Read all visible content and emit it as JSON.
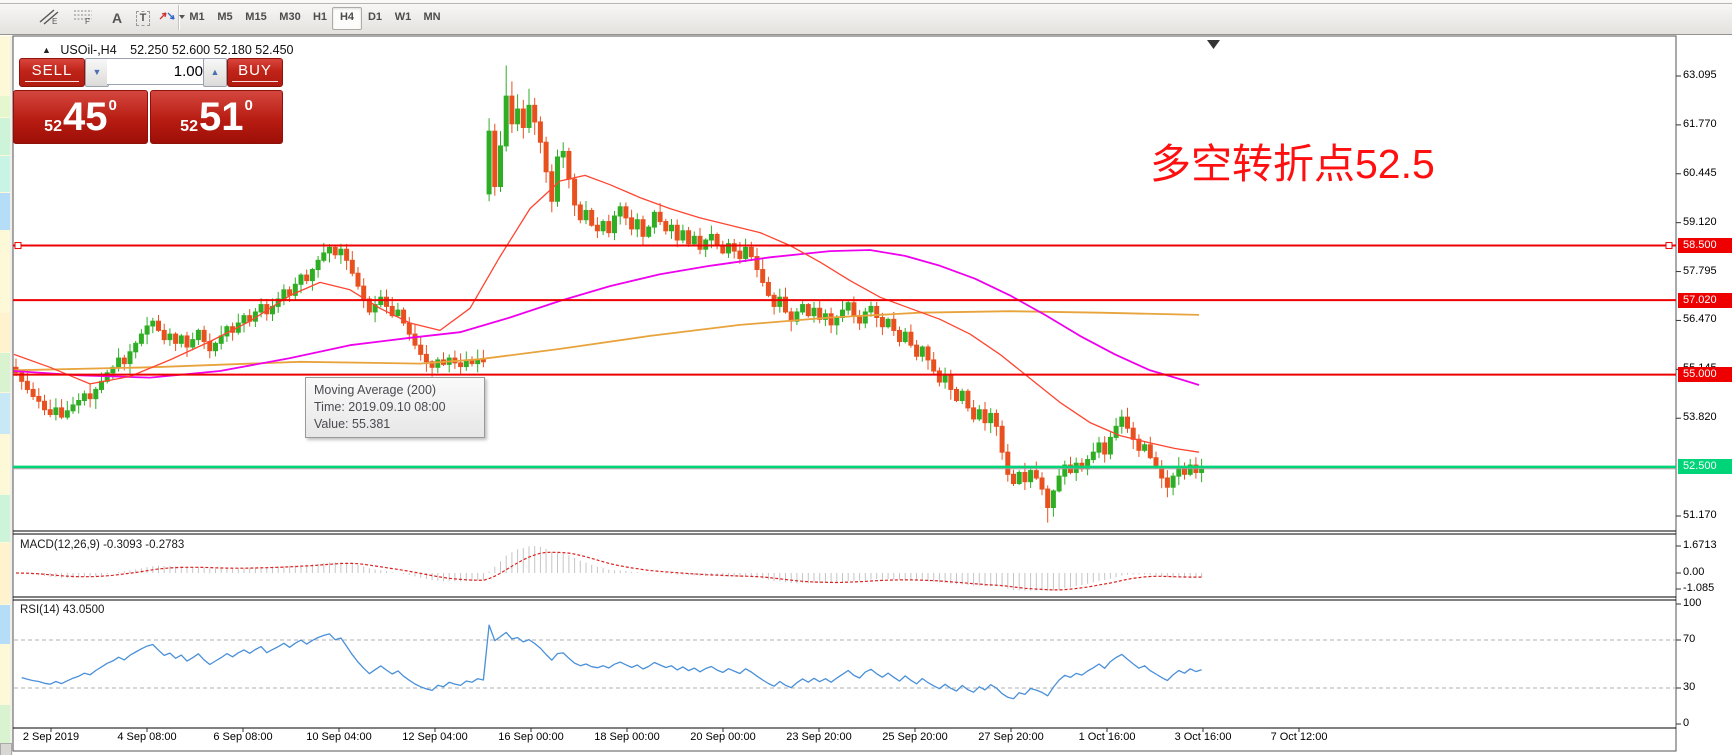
{
  "toolbar": {
    "drawing_tools": [
      {
        "name": "equidistant-channel-icon"
      },
      {
        "name": "fibonacci-retracement-icon"
      },
      {
        "name": "text-icon",
        "glyph": "A"
      },
      {
        "name": "text-label-icon",
        "glyph": "T"
      },
      {
        "name": "arrow-tools-icon"
      }
    ],
    "timeframes": [
      {
        "label": "M1",
        "active": false
      },
      {
        "label": "M5",
        "active": false
      },
      {
        "label": "M15",
        "active": false
      },
      {
        "label": "M30",
        "active": false
      },
      {
        "label": "H1",
        "active": false
      },
      {
        "label": "H4",
        "active": true
      },
      {
        "label": "D1",
        "active": false
      },
      {
        "label": "W1",
        "active": false
      },
      {
        "label": "MN",
        "active": false
      }
    ]
  },
  "chart_header": {
    "symbol": "USOil-,H4",
    "ohlc": "52.250 52.600 52.180 52.450"
  },
  "trade_panel": {
    "sell_label": "SELL",
    "buy_label": "BUY",
    "volume": "1.00",
    "bid": {
      "prefix": "52",
      "big": "45",
      "sup": "0",
      "full": "52.45"
    },
    "ask": {
      "prefix": "52",
      "big": "51",
      "sup": "0",
      "full": "52.51"
    }
  },
  "annotation": {
    "text": "多空转折点52.5",
    "color": "#ff0f0f"
  },
  "tooltip": {
    "title": "Moving Average (200)",
    "time": "Time: 2019.09.10 08:00",
    "value": "Value: 55.381"
  },
  "chart_data": {
    "type": "candlestick+indicators",
    "symbol": "USOil-,H4",
    "ylim": [
      50.77,
      64.12
    ],
    "y_axis_ticks": [
      "63.095",
      "61.770",
      "60.445",
      "59.120",
      "57.795",
      "56.470",
      "55.145",
      "53.820",
      "51.170"
    ],
    "price_lines": [
      {
        "price": 58.5,
        "label": "58.500",
        "color": "#ee0000",
        "handles": true
      },
      {
        "price": 57.02,
        "label": "57.020",
        "color": "#ee0000",
        "handles": false
      },
      {
        "price": 55.0,
        "label": "55.000",
        "color": "#ee0000",
        "handles": false
      },
      {
        "price": 52.5,
        "label": "52.500",
        "color": "#00d478",
        "handles": false
      }
    ],
    "current_price_line": 52.45,
    "x_axis_labels": [
      "2 Sep 2019",
      "4 Sep 08:00",
      "6 Sep 08:00",
      "10 Sep 04:00",
      "12 Sep 04:00",
      "16 Sep 00:00",
      "18 Sep 00:00",
      "20 Sep 00:00",
      "23 Sep 20:00",
      "25 Sep 20:00",
      "27 Sep 20:00",
      "1 Oct 16:00",
      "3 Oct 16:00",
      "7 Oct 12:00"
    ],
    "open_start": 55.2,
    "closes": [
      55.05,
      54.82,
      54.6,
      54.41,
      54.28,
      54.05,
      53.92,
      54.1,
      53.85,
      54.02,
      54.18,
      54.3,
      54.48,
      54.35,
      54.6,
      54.82,
      55.05,
      55.2,
      55.45,
      55.3,
      55.62,
      55.85,
      56.1,
      56.32,
      56.45,
      56.2,
      55.95,
      56.1,
      55.85,
      56.05,
      55.75,
      55.95,
      56.2,
      55.9,
      55.65,
      55.85,
      56.05,
      56.3,
      56.15,
      56.4,
      56.6,
      56.45,
      56.7,
      56.9,
      56.65,
      56.85,
      57.05,
      57.3,
      57.15,
      57.45,
      57.7,
      57.55,
      57.85,
      58.1,
      58.3,
      58.45,
      58.25,
      58.4,
      58.1,
      57.75,
      57.4,
      57.05,
      56.7,
      56.9,
      57.1,
      56.85,
      56.6,
      56.75,
      56.4,
      56.1,
      55.8,
      55.55,
      55.35,
      55.2,
      55.4,
      55.28,
      55.45,
      55.32,
      55.22,
      55.38,
      55.3,
      55.42,
      55.35,
      61.6,
      60.1,
      61.2,
      62.55,
      61.8,
      62.2,
      61.7,
      62.3,
      61.85,
      61.3,
      60.5,
      59.7,
      60.9,
      61.05,
      60.3,
      59.6,
      59.2,
      59.45,
      59.05,
      58.9,
      59.15,
      58.85,
      59.3,
      59.55,
      59.25,
      58.95,
      59.2,
      58.75,
      59.0,
      59.4,
      59.15,
      58.9,
      59.05,
      58.65,
      58.9,
      58.55,
      58.75,
      58.4,
      58.65,
      58.8,
      58.5,
      58.3,
      58.55,
      58.35,
      58.15,
      58.45,
      58.2,
      57.85,
      57.5,
      57.15,
      56.85,
      57.1,
      56.7,
      56.45,
      56.7,
      56.9,
      56.6,
      56.8,
      56.5,
      56.65,
      56.35,
      56.55,
      56.75,
      56.95,
      56.6,
      56.4,
      56.7,
      56.85,
      56.55,
      56.3,
      56.5,
      56.2,
      55.9,
      56.15,
      55.8,
      55.5,
      55.75,
      55.4,
      55.1,
      54.8,
      55.0,
      54.6,
      54.3,
      54.55,
      54.1,
      53.8,
      54.05,
      53.7,
      53.95,
      53.6,
      52.9,
      52.3,
      52.05,
      52.35,
      52.1,
      52.4,
      52.2,
      51.9,
      51.4,
      51.85,
      52.25,
      52.55,
      52.35,
      52.6,
      52.45,
      52.7,
      52.9,
      53.15,
      52.85,
      53.3,
      53.6,
      53.85,
      53.55,
      53.25,
      52.95,
      53.1,
      52.75,
      52.5,
      52.2,
      51.95,
      52.25,
      52.5,
      52.3,
      52.55,
      52.35,
      52.45
    ],
    "candle_overrides": {
      "83": [
        59.9,
        61.95,
        59.7,
        61.6
      ],
      "84": [
        61.6,
        61.8,
        59.85,
        60.1
      ],
      "85": [
        60.1,
        61.6,
        59.95,
        61.2
      ],
      "86": [
        61.2,
        63.38,
        61.05,
        62.55
      ],
      "87": [
        62.55,
        62.95,
        61.55,
        61.8
      ],
      "88": [
        61.8,
        62.6,
        61.6,
        62.2
      ],
      "89": [
        62.2,
        62.45,
        61.4,
        61.7
      ],
      "90": [
        61.7,
        62.75,
        61.55,
        62.3
      ],
      "91": [
        62.3,
        62.5,
        61.5,
        61.85
      ],
      "92": [
        61.85,
        62.0,
        61.0,
        61.3
      ],
      "93": [
        61.3,
        61.45,
        60.2,
        60.5
      ],
      "94": [
        60.5,
        60.7,
        59.4,
        59.7
      ],
      "95": [
        59.7,
        61.1,
        59.55,
        60.9
      ],
      "96": [
        60.9,
        61.3,
        60.6,
        61.05
      ],
      "97": [
        61.05,
        61.15,
        60.05,
        60.3
      ],
      "98": [
        60.3,
        60.45,
        59.3,
        59.6
      ],
      "181": [
        51.9,
        52.0,
        50.99,
        51.4
      ],
      "194": [
        53.6,
        54.05,
        53.4,
        53.85
      ]
    },
    "candle_colors": {
      "up": "#2fae24",
      "down": "#e8501f"
    },
    "moving_averages": [
      {
        "name": "MA-200",
        "color": "#e8a33d",
        "width": 1.8,
        "points": [
          [
            14,
            55.12
          ],
          [
            150,
            55.2
          ],
          [
            300,
            55.35
          ],
          [
            420,
            55.3
          ],
          [
            480,
            55.42
          ],
          [
            560,
            55.7
          ],
          [
            650,
            56.05
          ],
          [
            740,
            56.35
          ],
          [
            830,
            56.55
          ],
          [
            920,
            56.68
          ],
          [
            1010,
            56.72
          ],
          [
            1100,
            56.68
          ],
          [
            1199,
            56.62
          ]
        ]
      },
      {
        "name": "MA-mid",
        "color": "#ee00ee",
        "width": 1.8,
        "points": [
          [
            14,
            55.1
          ],
          [
            80,
            54.98
          ],
          [
            150,
            54.92
          ],
          [
            220,
            55.1
          ],
          [
            290,
            55.45
          ],
          [
            350,
            55.8
          ],
          [
            410,
            56.0
          ],
          [
            460,
            56.15
          ],
          [
            510,
            56.55
          ],
          [
            560,
            57.0
          ],
          [
            610,
            57.4
          ],
          [
            660,
            57.72
          ],
          [
            710,
            57.95
          ],
          [
            770,
            58.18
          ],
          [
            830,
            58.35
          ],
          [
            870,
            58.38
          ],
          [
            905,
            58.22
          ],
          [
            940,
            57.95
          ],
          [
            975,
            57.6
          ],
          [
            1010,
            57.15
          ],
          [
            1045,
            56.62
          ],
          [
            1080,
            56.05
          ],
          [
            1115,
            55.55
          ],
          [
            1150,
            55.12
          ],
          [
            1180,
            54.88
          ],
          [
            1199,
            54.72
          ]
        ]
      },
      {
        "name": "MA-fast",
        "color": "#ff4530",
        "width": 1.3,
        "points": [
          [
            14,
            55.55
          ],
          [
            50,
            55.2
          ],
          [
            90,
            54.75
          ],
          [
            130,
            54.95
          ],
          [
            170,
            55.4
          ],
          [
            210,
            55.9
          ],
          [
            250,
            56.45
          ],
          [
            290,
            57.15
          ],
          [
            320,
            57.5
          ],
          [
            350,
            57.3
          ],
          [
            380,
            56.8
          ],
          [
            410,
            56.4
          ],
          [
            440,
            56.2
          ],
          [
            470,
            56.8
          ],
          [
            500,
            58.2
          ],
          [
            530,
            59.5
          ],
          [
            560,
            60.25
          ],
          [
            585,
            60.4
          ],
          [
            610,
            60.15
          ],
          [
            640,
            59.8
          ],
          [
            670,
            59.5
          ],
          [
            700,
            59.25
          ],
          [
            730,
            59.05
          ],
          [
            760,
            58.85
          ],
          [
            790,
            58.5
          ],
          [
            820,
            58.05
          ],
          [
            850,
            57.55
          ],
          [
            880,
            57.1
          ],
          [
            910,
            56.8
          ],
          [
            940,
            56.5
          ],
          [
            970,
            56.1
          ],
          [
            1000,
            55.55
          ],
          [
            1030,
            54.9
          ],
          [
            1060,
            54.25
          ],
          [
            1090,
            53.7
          ],
          [
            1120,
            53.35
          ],
          [
            1150,
            53.15
          ],
          [
            1175,
            53.0
          ],
          [
            1199,
            52.9
          ]
        ]
      }
    ],
    "macd": {
      "label": "MACD(12,26,9)",
      "values": "-0.3093 -0.2783",
      "fast": 12,
      "slow": 26,
      "signal": 9,
      "y_ticks": [
        "1.6713",
        "0.00",
        "-1.085"
      ],
      "histogram_color": "#c4c4c4",
      "signal_color": "#dd2222"
    },
    "rsi": {
      "label": "RSI(14)",
      "value": "43.0500",
      "period": 14,
      "levels": [
        70,
        30
      ],
      "y_ticks": [
        "100",
        "70",
        "30",
        "0"
      ],
      "line_color": "#4a90d9"
    }
  }
}
